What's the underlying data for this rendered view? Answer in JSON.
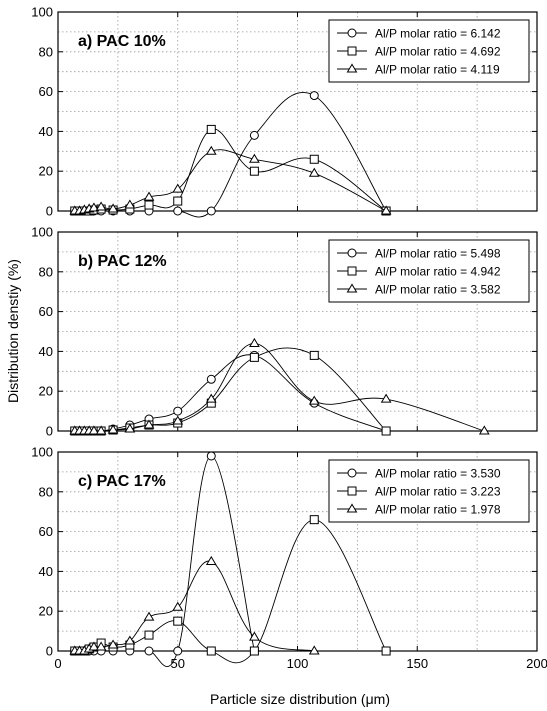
{
  "figure": {
    "xlabel": "Particle size distribution (μm)",
    "ylabel": "Distribution denstiy (%)"
  },
  "chart_data": [
    {
      "type": "line",
      "panel_label": "a) PAC 10%",
      "xlim": [
        0,
        200
      ],
      "ylim": [
        0,
        100
      ],
      "x_ticks": [
        0,
        50,
        100,
        150,
        200
      ],
      "y_ticks": [
        0,
        20,
        40,
        60,
        80,
        100
      ],
      "grid": true,
      "legend_position": "top-right",
      "series": [
        {
          "name": "Al/P molar ratio = 6.142",
          "marker": "circle",
          "x": [
            7,
            9,
            11,
            13,
            15,
            18,
            23,
            30,
            38,
            50,
            64,
            82,
            107,
            137
          ],
          "y": [
            0,
            0,
            0,
            0,
            0,
            0,
            0,
            0,
            0,
            0,
            0,
            38,
            58,
            0
          ]
        },
        {
          "name": "Al/P molar ratio = 4.692",
          "marker": "square",
          "x": [
            7,
            9,
            11,
            13,
            15,
            18,
            23,
            30,
            38,
            50,
            64,
            82,
            107,
            137
          ],
          "y": [
            0,
            0,
            0,
            0,
            0.5,
            1,
            0.5,
            1,
            3,
            5,
            41,
            20,
            26,
            0
          ]
        },
        {
          "name": "Al/P molar ratio = 4.119",
          "marker": "triangle",
          "x": [
            7,
            9,
            11,
            13,
            15,
            18,
            23,
            30,
            38,
            50,
            64,
            82,
            107,
            137
          ],
          "y": [
            0,
            0,
            0.5,
            1,
            1.5,
            2,
            1,
            3,
            7,
            11,
            30,
            26,
            19,
            0
          ]
        }
      ]
    },
    {
      "type": "line",
      "panel_label": "b) PAC 12%",
      "xlim": [
        0,
        200
      ],
      "ylim": [
        0,
        100
      ],
      "x_ticks": [
        0,
        50,
        100,
        150,
        200
      ],
      "y_ticks": [
        0,
        20,
        40,
        60,
        80,
        100
      ],
      "grid": true,
      "legend_position": "top-right",
      "series": [
        {
          "name": "Al/P molar ratio = 5.498",
          "marker": "circle",
          "x": [
            7,
            9,
            11,
            13,
            15,
            18,
            23,
            30,
            38,
            50,
            64,
            82,
            107,
            137
          ],
          "y": [
            0,
            0,
            0,
            0,
            0,
            0,
            1,
            3,
            6,
            10,
            26,
            38,
            14,
            0
          ]
        },
        {
          "name": "Al/P molar ratio = 4.942",
          "marker": "square",
          "x": [
            7,
            9,
            11,
            13,
            15,
            18,
            23,
            30,
            38,
            50,
            64,
            82,
            107,
            137
          ],
          "y": [
            0,
            0,
            0,
            0,
            0,
            0,
            0.5,
            1.5,
            3,
            4,
            14,
            37,
            38,
            0
          ]
        },
        {
          "name": "Al/P molar ratio = 3.582",
          "marker": "triangle",
          "x": [
            7,
            9,
            11,
            13,
            15,
            18,
            23,
            30,
            38,
            50,
            64,
            82,
            107,
            137,
            178
          ],
          "y": [
            0,
            0,
            0,
            0,
            0,
            0,
            0.5,
            1,
            3,
            5,
            16,
            44,
            15,
            16,
            0
          ]
        }
      ]
    },
    {
      "type": "line",
      "panel_label": "c) PAC 17%",
      "xlim": [
        0,
        200
      ],
      "ylim": [
        0,
        100
      ],
      "x_ticks": [
        0,
        50,
        100,
        150,
        200
      ],
      "y_ticks": [
        0,
        20,
        40,
        60,
        80,
        100
      ],
      "grid": true,
      "legend_position": "top-right",
      "series": [
        {
          "name": "Al/P molar ratio = 3.530",
          "marker": "circle",
          "x": [
            7,
            9,
            11,
            13,
            15,
            18,
            23,
            30,
            38,
            50,
            64,
            82
          ],
          "y": [
            0,
            0,
            0,
            0,
            0,
            0,
            0,
            0,
            0,
            0,
            98,
            0
          ]
        },
        {
          "name": "Al/P molar ratio = 3.223",
          "marker": "square",
          "x": [
            7,
            9,
            11,
            13,
            15,
            18,
            23,
            30,
            38,
            50,
            64,
            82,
            107,
            137
          ],
          "y": [
            0,
            0,
            0,
            1,
            2,
            4,
            2,
            3,
            8,
            15,
            0,
            0,
            66,
            0
          ]
        },
        {
          "name": "Al/P molar ratio = 1.978",
          "marker": "triangle",
          "x": [
            7,
            9,
            11,
            13,
            15,
            18,
            23,
            30,
            38,
            50,
            64,
            82,
            107
          ],
          "y": [
            0,
            0,
            0,
            1,
            2,
            2,
            3,
            5,
            17,
            22,
            45,
            7,
            0
          ]
        }
      ]
    }
  ]
}
